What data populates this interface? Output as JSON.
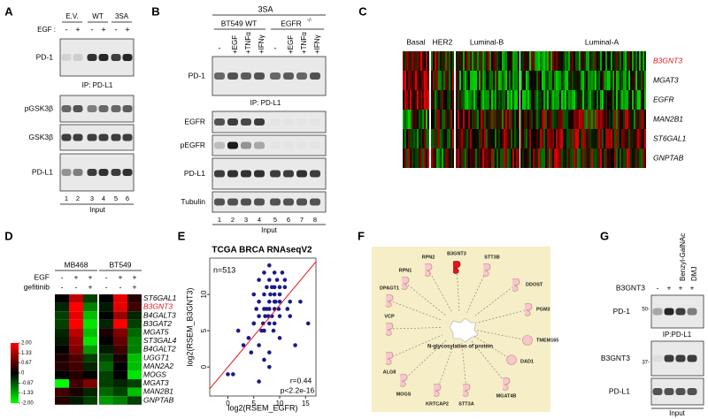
{
  "panel_labels": [
    "A",
    "B",
    "C",
    "D",
    "E",
    "F",
    "G"
  ],
  "highlight_color": "#e8141c",
  "panel_a": {
    "groups": [
      "E.V.",
      "WT",
      "3SA"
    ],
    "treatment_label": "EGF :",
    "treatment_signs": [
      "-",
      "+",
      "-",
      "+",
      "-",
      "+"
    ],
    "blots": [
      "PD-1",
      "pGSK3β",
      "GSK3β",
      "PD-L1"
    ],
    "ip_label": "IP: PD-L1",
    "lanes": [
      "1",
      "2",
      "3",
      "4",
      "5",
      "6"
    ],
    "footer": "Input"
  },
  "panel_b": {
    "header": "3SA",
    "group_wt": "BT549 WT",
    "group_ko": "EGFR",
    "group_ko_sup": "-/-",
    "treatments": [
      "-",
      "+EGF",
      "+TNFα",
      "+IFNγ",
      "-",
      "+EGF",
      "+TNFα",
      "+IFNγ"
    ],
    "blots": [
      "PD-1",
      "EGFR",
      "pEGFR",
      "PD-L1",
      "Tubulin"
    ],
    "ip_label": "IP: PD-L1",
    "lanes": [
      "1",
      "2",
      "3",
      "4",
      "5",
      "6",
      "7",
      "8"
    ],
    "footer": "Input"
  },
  "panel_c": {
    "subtypes": [
      "Basal",
      "HER2",
      "Luminal-B",
      "Luminal-A"
    ],
    "genes": [
      "B3GNT3",
      "MGAT3",
      "EGFR",
      "MAN2B1",
      "ST6GAL1",
      "GNPTAB"
    ],
    "highlight": 0
  },
  "panel_d": {
    "cell_lines": [
      "MB468",
      "BT549"
    ],
    "conditions": [
      {
        "label": "EGF",
        "signs": [
          "-",
          "+",
          "+",
          "-",
          "+",
          "+"
        ]
      },
      {
        "label": "gefitinib",
        "signs": [
          "-",
          "-",
          "+",
          "-",
          "-",
          "+"
        ]
      }
    ],
    "genes": [
      "ST6GAL1",
      "B3GNT3",
      "B4GALT3",
      "B3GAT2",
      "MGAT5",
      "ST3GAL4",
      "B4GALT2",
      "UGGT1",
      "MAN2A2",
      "MOGS",
      "MGAT3",
      "MAN2B1",
      "GNPTAB"
    ],
    "highlight": 1,
    "values": [
      [
        0,
        1.5,
        -0.5,
        0,
        1.8,
        0.3
      ],
      [
        -0.3,
        2,
        -1,
        -0.2,
        1.8,
        0.5
      ],
      [
        -0.5,
        1.8,
        -1.5,
        0,
        1.2,
        -0.3
      ],
      [
        -0.5,
        2,
        -1.8,
        -0.3,
        2,
        -0.5
      ],
      [
        -0.3,
        1.5,
        -1.5,
        0.2,
        1,
        -0.8
      ],
      [
        -0.2,
        1.2,
        -1.8,
        0,
        0.8,
        -1
      ],
      [
        0,
        1,
        -1.2,
        -0.2,
        0.5,
        -1
      ],
      [
        0.2,
        0.6,
        -0.5,
        -0.5,
        0.2,
        -1.5
      ],
      [
        0.3,
        0.5,
        -0.3,
        -0.8,
        0,
        -1.5
      ],
      [
        0,
        0.3,
        0,
        -0.5,
        0,
        -1.8
      ],
      [
        -2,
        0.5,
        1,
        -0.5,
        -0.3,
        -0.5
      ],
      [
        0.5,
        0.2,
        -0.3,
        -0.8,
        -0.5,
        -1.5
      ],
      [
        0.3,
        -0.2,
        -0.5,
        -1.2,
        -1,
        -0.5
      ]
    ],
    "scale_lim": [
      -2,
      2
    ],
    "scale_ticks": [
      {
        "value": 2,
        "label": "2.00"
      },
      {
        "value": 1.33,
        "label": "1.33"
      },
      {
        "value": 0.67,
        "label": "0.67"
      },
      0,
      {
        "value": -0.67,
        "label": "-0.67"
      },
      {
        "value": -1.33,
        "label": "-1.33"
      },
      {
        "value": -2,
        "label": "-2.00"
      }
    ]
  },
  "panel_e": {
    "type": "scatter",
    "title": "TCGA BRCA RNAseqV2",
    "n_label": "n=513",
    "r_label": "r=0.44",
    "p_label": "p<2.2e-16",
    "x_label": "log2(RSEM_EGFR)",
    "y_label": "log2(RSEM_B3GNT3)",
    "xlim": [
      -3.5,
      17
    ],
    "ylim": [
      -4,
      15
    ],
    "xticks": [
      0,
      5,
      10,
      15
    ],
    "yticks": [
      0,
      5,
      10
    ],
    "color": "#1a1a8c",
    "fit_color": "#e8141c",
    "x": [
      5,
      6,
      7,
      8,
      9,
      10,
      7.5,
      8.5,
      6.5,
      9.5,
      4,
      11,
      12,
      7,
      8,
      9,
      6,
      10,
      5.5,
      8,
      7,
      9,
      10.5,
      6,
      8.5,
      7.5,
      9,
      11.5,
      3,
      2,
      14,
      15.5,
      1,
      8,
      7,
      6,
      9,
      10,
      8,
      7.8,
      8.2,
      9.2,
      6.8,
      5,
      10,
      11,
      4.5,
      7.2,
      8.8,
      9.8,
      0,
      13,
      6,
      7,
      8,
      9,
      10,
      5,
      12,
      8
    ],
    "y": [
      6,
      7,
      8,
      9,
      9,
      10,
      8,
      11,
      5,
      12,
      4,
      11,
      9,
      10,
      6,
      8,
      3,
      7,
      8,
      12,
      5,
      10,
      13,
      9,
      7,
      11,
      6,
      8,
      3,
      5,
      9,
      6,
      -1,
      2,
      1,
      -2,
      13,
      4,
      14,
      7,
      10,
      9,
      6,
      10,
      11,
      12,
      2,
      7,
      5,
      8,
      -1,
      3,
      12,
      13,
      8,
      11,
      9,
      6,
      7,
      0
    ],
    "fit": {
      "x": [
        -3.5,
        17
      ],
      "y": [
        -3,
        14.5
      ]
    }
  },
  "panel_f": {
    "center": "N-glycosylation of protein",
    "nodes": [
      "B3GNT3",
      "RPN2",
      "STT3B",
      "RPN1",
      "DPAGT1",
      "DDOST",
      "PGM3",
      "VCP",
      "TMEM165",
      "ALG8",
      "DAD1",
      "MOGS",
      "MGAT4B",
      "KRTCAP2",
      "STT3A"
    ],
    "highlight": "B3GNT3"
  },
  "panel_g": {
    "row_label": "B3GNT3",
    "signs": [
      "-",
      "+",
      "+",
      "+"
    ],
    "treatments": [
      "Benzyl-GalNAc",
      "DMJ"
    ],
    "blots": [
      "PD-1",
      "B3GNT3",
      "PD-L1"
    ],
    "markers": [
      "50-",
      "37-"
    ],
    "ip_label": "IP:PD-L1",
    "footer": "Input"
  }
}
